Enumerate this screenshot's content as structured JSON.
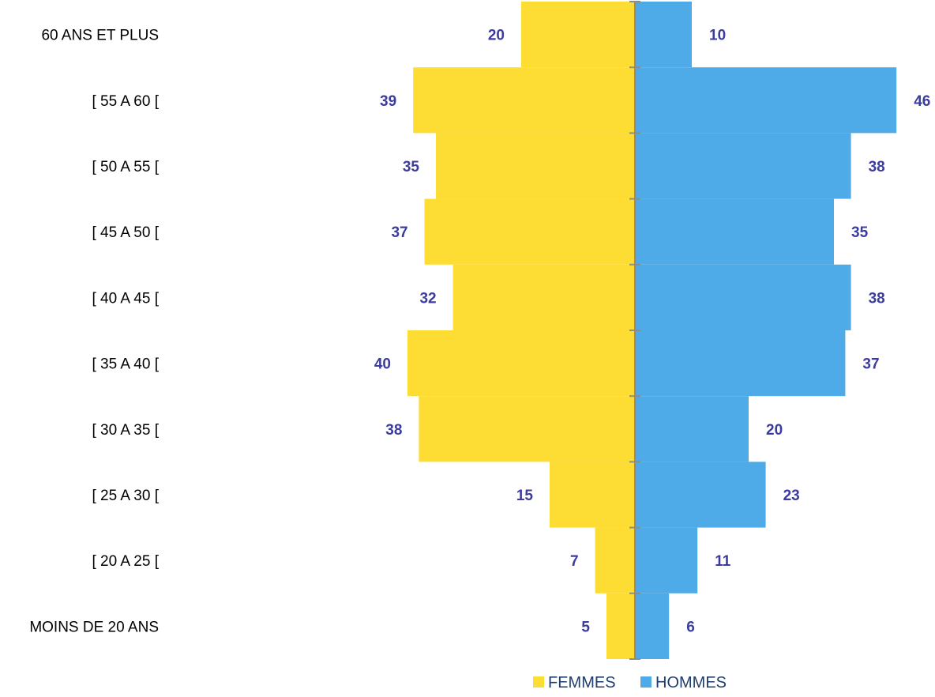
{
  "chart_data": {
    "type": "bar",
    "orientation": "horizontal",
    "layout": "population-pyramid",
    "categories": [
      "60 ANS ET PLUS",
      "[ 55 A 60 [",
      "[ 50 A 55 [",
      "[ 45 A 50 [",
      "[ 40 A 45 [",
      "[ 35 A 40 [",
      "[ 30 A 35 [",
      "[ 25 A 30 [",
      "[ 20 A 25 [",
      "MOINS DE 20 ANS"
    ],
    "series": [
      {
        "name": "FEMMES",
        "side": "left",
        "color": "#fddc33",
        "values": [
          20,
          39,
          35,
          37,
          32,
          40,
          38,
          15,
          7,
          5
        ]
      },
      {
        "name": "HOMMES",
        "side": "right",
        "color": "#4fabe8",
        "values": [
          10,
          46,
          38,
          35,
          38,
          37,
          20,
          23,
          11,
          6
        ]
      }
    ],
    "title": "",
    "xlabel": "",
    "ylabel": "",
    "xlim": [
      0,
      46
    ],
    "grid": false,
    "legend": "bottom",
    "axis_color": "#8c8c8c",
    "label_color": "#3b3ba0"
  }
}
